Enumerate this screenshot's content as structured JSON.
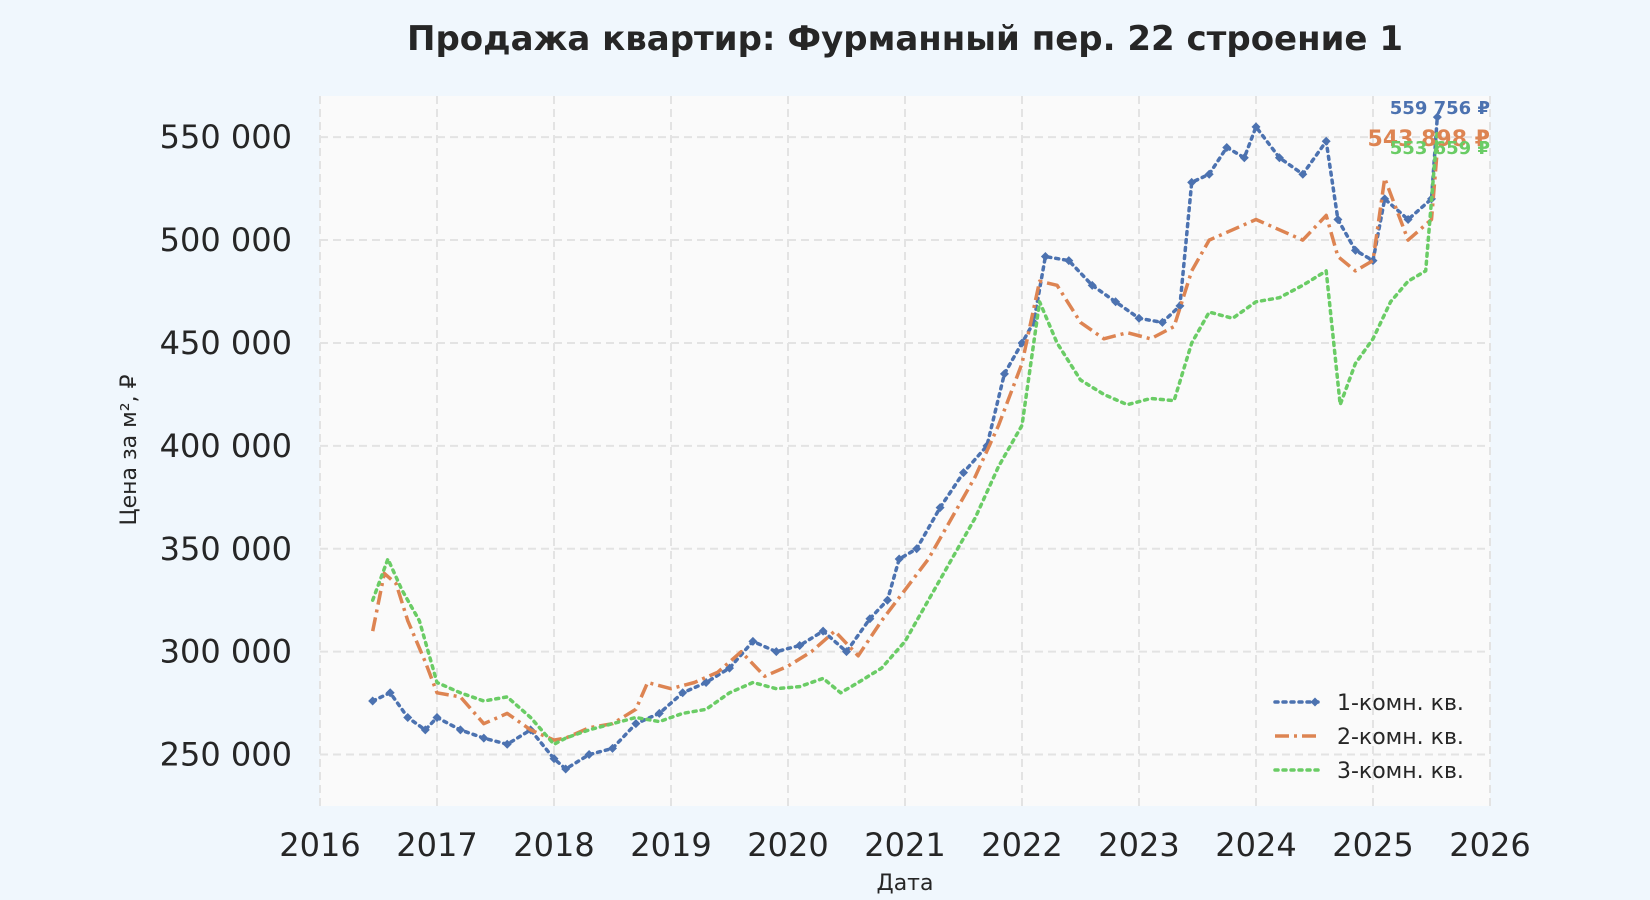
{
  "chart_data": {
    "type": "line",
    "title": "Продажа квартир: Фурманный пер. 22 строение 1",
    "xlabel": "Дата",
    "ylabel": "Цена за м², ₽",
    "xlim": [
      2016.0,
      2026.0
    ],
    "ylim": [
      225000,
      570000
    ],
    "x_ticks": [
      2016,
      2017,
      2018,
      2019,
      2020,
      2021,
      2022,
      2023,
      2024,
      2025,
      2026
    ],
    "x_tick_labels": [
      "2016",
      "2017",
      "2018",
      "2019",
      "2020",
      "2021",
      "2022",
      "2023",
      "2024",
      "2025",
      "2026"
    ],
    "y_ticks": [
      250000,
      300000,
      350000,
      400000,
      450000,
      500000,
      550000
    ],
    "y_tick_labels": [
      "250 000",
      "300 000",
      "350 000",
      "400 000",
      "450 000",
      "500 000",
      "550 000"
    ],
    "grid": true,
    "legend_position": "lower-right",
    "series": [
      {
        "name": "1-комн. кв.",
        "color": "#4c72b0",
        "style": "dotted-diamond",
        "end_label": "559 756 ₽",
        "x": [
          2016.45,
          2016.6,
          2016.75,
          2016.9,
          2017.0,
          2017.2,
          2017.4,
          2017.6,
          2017.8,
          2018.0,
          2018.1,
          2018.3,
          2018.5,
          2018.7,
          2018.9,
          2019.1,
          2019.3,
          2019.5,
          2019.7,
          2019.9,
          2020.1,
          2020.3,
          2020.5,
          2020.7,
          2020.85,
          2020.95,
          2021.1,
          2021.3,
          2021.5,
          2021.7,
          2021.85,
          2022.0,
          2022.1,
          2022.2,
          2022.4,
          2022.6,
          2022.8,
          2023.0,
          2023.2,
          2023.35,
          2023.45,
          2023.6,
          2023.75,
          2023.9,
          2024.0,
          2024.2,
          2024.4,
          2024.6,
          2024.7,
          2024.85,
          2025.0,
          2025.1,
          2025.3,
          2025.5,
          2025.55
        ],
        "y": [
          276000,
          280000,
          268000,
          262000,
          268000,
          262000,
          258000,
          255000,
          262000,
          248000,
          243000,
          250000,
          253000,
          265000,
          270000,
          280000,
          285000,
          292000,
          305000,
          300000,
          303000,
          310000,
          300000,
          316000,
          325000,
          345000,
          350000,
          370000,
          387000,
          400000,
          435000,
          450000,
          460000,
          492000,
          490000,
          478000,
          470000,
          462000,
          460000,
          468000,
          528000,
          532000,
          545000,
          540000,
          555000,
          540000,
          532000,
          548000,
          510000,
          495000,
          490000,
          520000,
          510000,
          520000,
          559756
        ]
      },
      {
        "name": "2-комн. кв.",
        "color": "#dd8452",
        "style": "dash-dot",
        "end_label": "543 898 ₽",
        "x": [
          2016.45,
          2016.55,
          2016.65,
          2016.75,
          2016.9,
          2017.0,
          2017.2,
          2017.4,
          2017.6,
          2017.8,
          2018.0,
          2018.1,
          2018.3,
          2018.5,
          2018.7,
          2018.8,
          2019.0,
          2019.2,
          2019.4,
          2019.6,
          2019.8,
          2020.0,
          2020.2,
          2020.4,
          2020.6,
          2020.8,
          2021.0,
          2021.2,
          2021.4,
          2021.6,
          2021.8,
          2022.0,
          2022.15,
          2022.3,
          2022.5,
          2022.7,
          2022.9,
          2023.1,
          2023.3,
          2023.45,
          2023.6,
          2023.8,
          2024.0,
          2024.2,
          2024.4,
          2024.6,
          2024.7,
          2024.85,
          2025.0,
          2025.1,
          2025.3,
          2025.5,
          2025.55
        ],
        "y": [
          310000,
          338000,
          333000,
          315000,
          295000,
          280000,
          278000,
          265000,
          270000,
          262000,
          257000,
          258000,
          263000,
          265000,
          272000,
          285000,
          282000,
          285000,
          290000,
          300000,
          288000,
          293000,
          300000,
          310000,
          298000,
          315000,
          330000,
          345000,
          365000,
          385000,
          410000,
          440000,
          480000,
          478000,
          460000,
          452000,
          455000,
          452000,
          458000,
          485000,
          500000,
          505000,
          510000,
          505000,
          500000,
          512000,
          492000,
          485000,
          490000,
          530000,
          500000,
          510000,
          543898
        ]
      },
      {
        "name": "3-комн. кв.",
        "color": "#6acc65",
        "style": "dotted",
        "end_label": "553 659 ₽",
        "x": [
          2016.45,
          2016.58,
          2016.7,
          2016.85,
          2017.0,
          2017.2,
          2017.4,
          2017.6,
          2017.8,
          2018.0,
          2018.1,
          2018.3,
          2018.5,
          2018.7,
          2018.9,
          2019.1,
          2019.3,
          2019.5,
          2019.7,
          2019.9,
          2020.1,
          2020.3,
          2020.45,
          2020.6,
          2020.8,
          2021.0,
          2021.2,
          2021.4,
          2021.6,
          2021.8,
          2022.0,
          2022.15,
          2022.3,
          2022.5,
          2022.7,
          2022.9,
          2023.1,
          2023.3,
          2023.45,
          2023.6,
          2023.8,
          2024.0,
          2024.2,
          2024.4,
          2024.6,
          2024.72,
          2024.85,
          2025.0,
          2025.15,
          2025.3,
          2025.45,
          2025.55
        ],
        "y": [
          325000,
          345000,
          330000,
          315000,
          285000,
          280000,
          276000,
          278000,
          268000,
          255000,
          258000,
          262000,
          265000,
          268000,
          266000,
          270000,
          272000,
          280000,
          285000,
          282000,
          283000,
          287000,
          280000,
          285000,
          292000,
          305000,
          325000,
          345000,
          365000,
          390000,
          410000,
          470000,
          450000,
          432000,
          425000,
          420000,
          423000,
          422000,
          450000,
          465000,
          462000,
          470000,
          472000,
          478000,
          485000,
          420000,
          440000,
          452000,
          470000,
          480000,
          485000,
          553659
        ]
      }
    ]
  }
}
